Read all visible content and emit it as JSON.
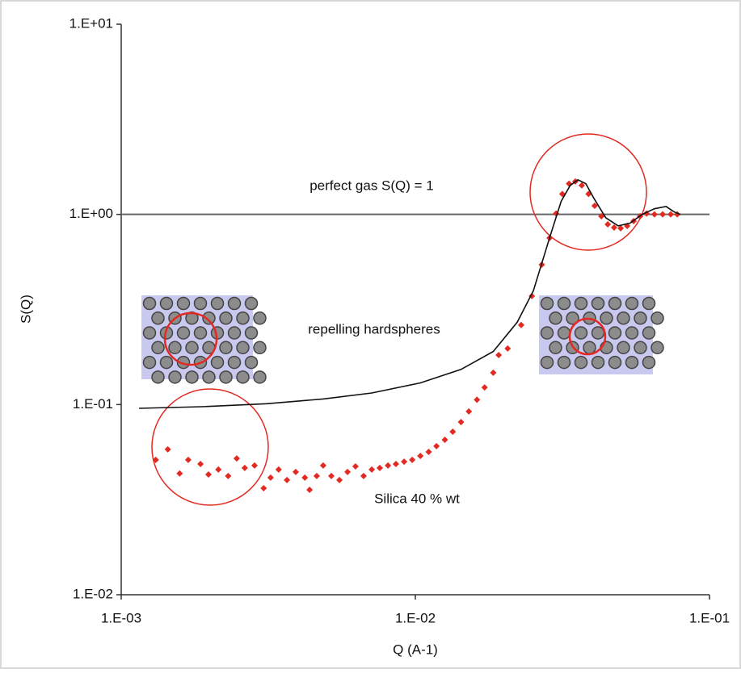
{
  "chart_data": {
    "type": "scatter",
    "xlabel": "Q (A-1)",
    "ylabel": "S(Q)",
    "xscale": "log",
    "yscale": "log",
    "xlim": [
      0.001,
      0.1
    ],
    "ylim": [
      0.01,
      10
    ],
    "xticks": [
      {
        "value": 0.001,
        "label": "1.E-03"
      },
      {
        "value": 0.01,
        "label": "1.E-02"
      },
      {
        "value": 0.1,
        "label": "1.E-01"
      }
    ],
    "yticks": [
      {
        "value": 0.01,
        "label": "1.E-02"
      },
      {
        "value": 0.1,
        "label": "1.E-01"
      },
      {
        "value": 1,
        "label": "1.E+00"
      },
      {
        "value": 10,
        "label": "1.E+01"
      }
    ],
    "hline": {
      "name": "perfect gas S(Q) = 1",
      "value": 1,
      "color": "#666666"
    },
    "series": [
      {
        "name": "Silica 40 % wt",
        "type": "scatter",
        "color": "#e32a22",
        "x": [
          0.00131,
          0.00144,
          0.00158,
          0.00169,
          0.00186,
          0.00198,
          0.00214,
          0.00231,
          0.00247,
          0.00263,
          0.00284,
          0.00305,
          0.00322,
          0.00343,
          0.00366,
          0.00392,
          0.00421,
          0.00437,
          0.00462,
          0.00486,
          0.00518,
          0.00552,
          0.00588,
          0.00626,
          0.00667,
          0.00711,
          0.00757,
          0.00807,
          0.00859,
          0.00916,
          0.00976,
          0.0104,
          0.0111,
          0.0118,
          0.0126,
          0.0134,
          0.0143,
          0.0152,
          0.0162,
          0.0172,
          0.0184,
          0.0192,
          0.0206,
          0.0229,
          0.0249,
          0.0269,
          0.0286,
          0.0301,
          0.0316,
          0.0333,
          0.035,
          0.0368,
          0.0388,
          0.0407,
          0.0429,
          0.0451,
          0.0474,
          0.0499,
          0.0525,
          0.0552,
          0.0581,
          0.0611,
          0.065,
          0.0693,
          0.0738,
          0.0777
        ],
        "values": [
          0.0512,
          0.0581,
          0.0434,
          0.0512,
          0.0487,
          0.0429,
          0.0455,
          0.0421,
          0.0521,
          0.0464,
          0.0478,
          0.0363,
          0.0413,
          0.0455,
          0.0401,
          0.0442,
          0.0413,
          0.0356,
          0.0421,
          0.0478,
          0.0421,
          0.0401,
          0.0442,
          0.0473,
          0.0421,
          0.0455,
          0.0464,
          0.0478,
          0.0487,
          0.0501,
          0.0512,
          0.0537,
          0.0564,
          0.0604,
          0.0653,
          0.072,
          0.0809,
          0.092,
          0.106,
          0.123,
          0.147,
          0.182,
          0.197,
          0.262,
          0.372,
          0.544,
          0.752,
          1.01,
          1.28,
          1.45,
          1.49,
          1.42,
          1.28,
          1.11,
          0.977,
          0.887,
          0.853,
          0.845,
          0.869,
          0.922,
          0.977,
          1.01,
          1.0,
          1.0,
          1.0,
          1.0
        ]
      },
      {
        "name": "repelling hardspheres",
        "type": "line",
        "color": "#111111",
        "x": [
          0.00115,
          0.00188,
          0.00312,
          0.00486,
          0.00711,
          0.0104,
          0.0143,
          0.0184,
          0.0222,
          0.0252,
          0.0286,
          0.0313,
          0.0336,
          0.0357,
          0.038,
          0.0404,
          0.0444,
          0.0489,
          0.0537,
          0.059,
          0.065,
          0.0712,
          0.0758,
          0.0797
        ],
        "values": [
          0.0955,
          0.0974,
          0.101,
          0.107,
          0.115,
          0.13,
          0.153,
          0.19,
          0.271,
          0.397,
          0.752,
          1.17,
          1.42,
          1.52,
          1.45,
          1.22,
          0.96,
          0.87,
          0.9,
          1.0,
          1.07,
          1.1,
          1.03,
          1.0
        ]
      }
    ]
  }
}
